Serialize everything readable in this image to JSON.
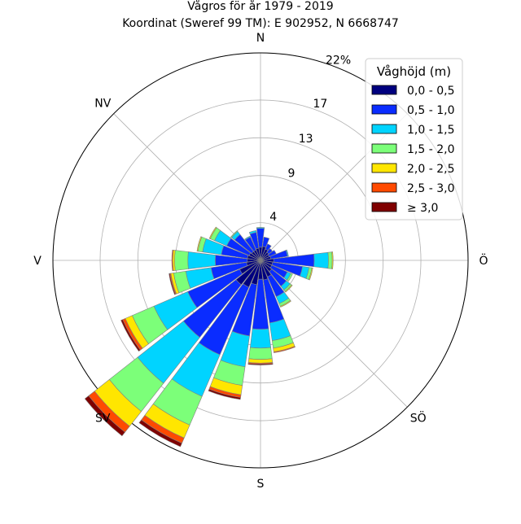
{
  "chart_data": {
    "type": "windrose",
    "title": "Vågros för år 1979 - 2019",
    "subtitle": "Koordinat (Sweref 99 TM): E 902952, N 6668747",
    "direction_labels": [
      "N",
      "Ö",
      "S",
      "V",
      "NV",
      "SV",
      "SÖ"
    ],
    "direction_labels_map": {
      "N": 0,
      "NV": 315,
      "V": 270,
      "SV": 225,
      "S": 180,
      "SÖ": 135,
      "Ö": 90
    },
    "radial_ticks": [
      4,
      9,
      13,
      17,
      22
    ],
    "radial_tick_labels": [
      "4",
      "9",
      "13",
      "17",
      "22%"
    ],
    "rmax": 22,
    "ylabel_unit": "%",
    "legend": {
      "title": "Våghöjd (m)",
      "placement": "top-right",
      "entries": [
        "0,0 - 0,5",
        "0,5 - 1,0",
        "1,0 - 1,5",
        "1,5 - 2,0",
        "2,0 - 2,5",
        "2,5 - 3,0",
        "≥ 3,0"
      ]
    },
    "colors": [
      "#00007f",
      "#0a2cff",
      "#00d4ff",
      "#7cff79",
      "#ffe600",
      "#ff4a00",
      "#7f0000"
    ],
    "sectors_deg": [
      0,
      15,
      30,
      45,
      60,
      75,
      90,
      105,
      120,
      135,
      150,
      165,
      180,
      195,
      210,
      225,
      240,
      255,
      270,
      285,
      300,
      315,
      330,
      345
    ],
    "series": [
      {
        "name": "0,0 - 0,5",
        "values": [
          1.4,
          1.5,
          1.3,
          1.1,
          1.0,
          1.1,
          1.4,
          1.3,
          1.3,
          1.5,
          1.9,
          2.1,
          2.0,
          2.6,
          3.1,
          3.3,
          2.4,
          1.5,
          1.4,
          1.4,
          1.3,
          1.2,
          1.2,
          1.3
        ]
      },
      {
        "name": "0,5 - 1,0",
        "values": [
          2.0,
          1.0,
          0.6,
          0.5,
          0.8,
          1.8,
          4.3,
          3.2,
          1.8,
          2.0,
          2.3,
          4.6,
          5.3,
          5.5,
          7.8,
          7.1,
          6.0,
          3.8,
          3.4,
          2.8,
          2.6,
          2.3,
          1.5,
          1.7
        ]
      },
      {
        "name": "1,0 - 1,5",
        "values": [
          0.1,
          0.0,
          0.0,
          0.0,
          0.0,
          0.1,
          1.5,
          0.7,
          0.4,
          0.5,
          0.8,
          1.9,
          2.0,
          3.3,
          4.8,
          6.2,
          3.9,
          2.7,
          2.9,
          2.0,
          1.4,
          0.4,
          0.1,
          0.2
        ]
      },
      {
        "name": "1,5 - 2,0",
        "values": [
          0.0,
          0.0,
          0.0,
          0.0,
          0.0,
          0.0,
          0.4,
          0.3,
          0.2,
          0.2,
          0.3,
          0.8,
          1.2,
          2.0,
          3.3,
          3.8,
          2.5,
          1.3,
          1.4,
          0.5,
          0.5,
          0.1,
          0.0,
          0.0
        ]
      },
      {
        "name": "2,0 - 2,5",
        "values": [
          0.0,
          0.0,
          0.0,
          0.0,
          0.0,
          0.0,
          0.1,
          0.1,
          0.0,
          0.1,
          0.1,
          0.4,
          0.4,
          1.0,
          1.5,
          2.0,
          0.8,
          0.3,
          0.2,
          0.1,
          0.1,
          0.0,
          0.0,
          0.0
        ]
      },
      {
        "name": "2,5 - 3,0",
        "values": [
          0.0,
          0.0,
          0.0,
          0.0,
          0.0,
          0.0,
          0.0,
          0.0,
          0.0,
          0.0,
          0.0,
          0.1,
          0.1,
          0.3,
          0.6,
          0.8,
          0.3,
          0.1,
          0.1,
          0.0,
          0.0,
          0.0,
          0.0,
          0.0
        ]
      },
      {
        "name": "≥ 3,0",
        "values": [
          0.0,
          0.0,
          0.0,
          0.0,
          0.0,
          0.0,
          0.0,
          0.0,
          0.0,
          0.0,
          0.0,
          0.0,
          0.1,
          0.2,
          0.4,
          0.5,
          0.2,
          0.1,
          0.0,
          0.0,
          0.0,
          0.0,
          0.0,
          0.0
        ]
      }
    ]
  }
}
